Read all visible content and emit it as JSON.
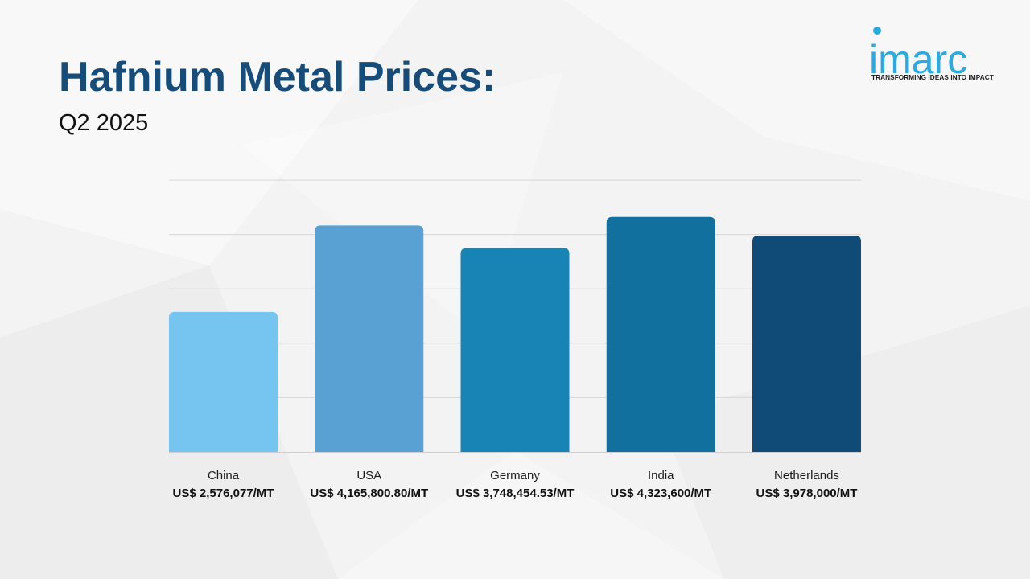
{
  "header": {
    "title": "Hafnium Metal Prices:",
    "subtitle": "Q2 2025"
  },
  "logo": {
    "wordmark": "imarc",
    "tagline": "TRANSFORMING IDEAS INTO IMPACT",
    "color": "#29abe2"
  },
  "chart_data": {
    "type": "bar",
    "title": "Hafnium Metal Prices: Q2 2025",
    "xlabel": "",
    "ylabel": "",
    "ylim": [
      0,
      5000000
    ],
    "grid": true,
    "categories": [
      "China",
      "USA",
      "Germany",
      "India",
      "Netherlands"
    ],
    "values": [
      2576077,
      4165800.8,
      3748454.53,
      4323600,
      3978000
    ],
    "value_labels": [
      "US$ 2,576,077/MT",
      "US$ 4,165,800.80/MT",
      "US$ 3,748,454.53/MT",
      "US$ 4,323,600/MT",
      "US$ 3,978,000/MT"
    ],
    "colors": [
      "#76c5f0",
      "#58a1d2",
      "#1883b5",
      "#12709f",
      "#104a77"
    ]
  }
}
